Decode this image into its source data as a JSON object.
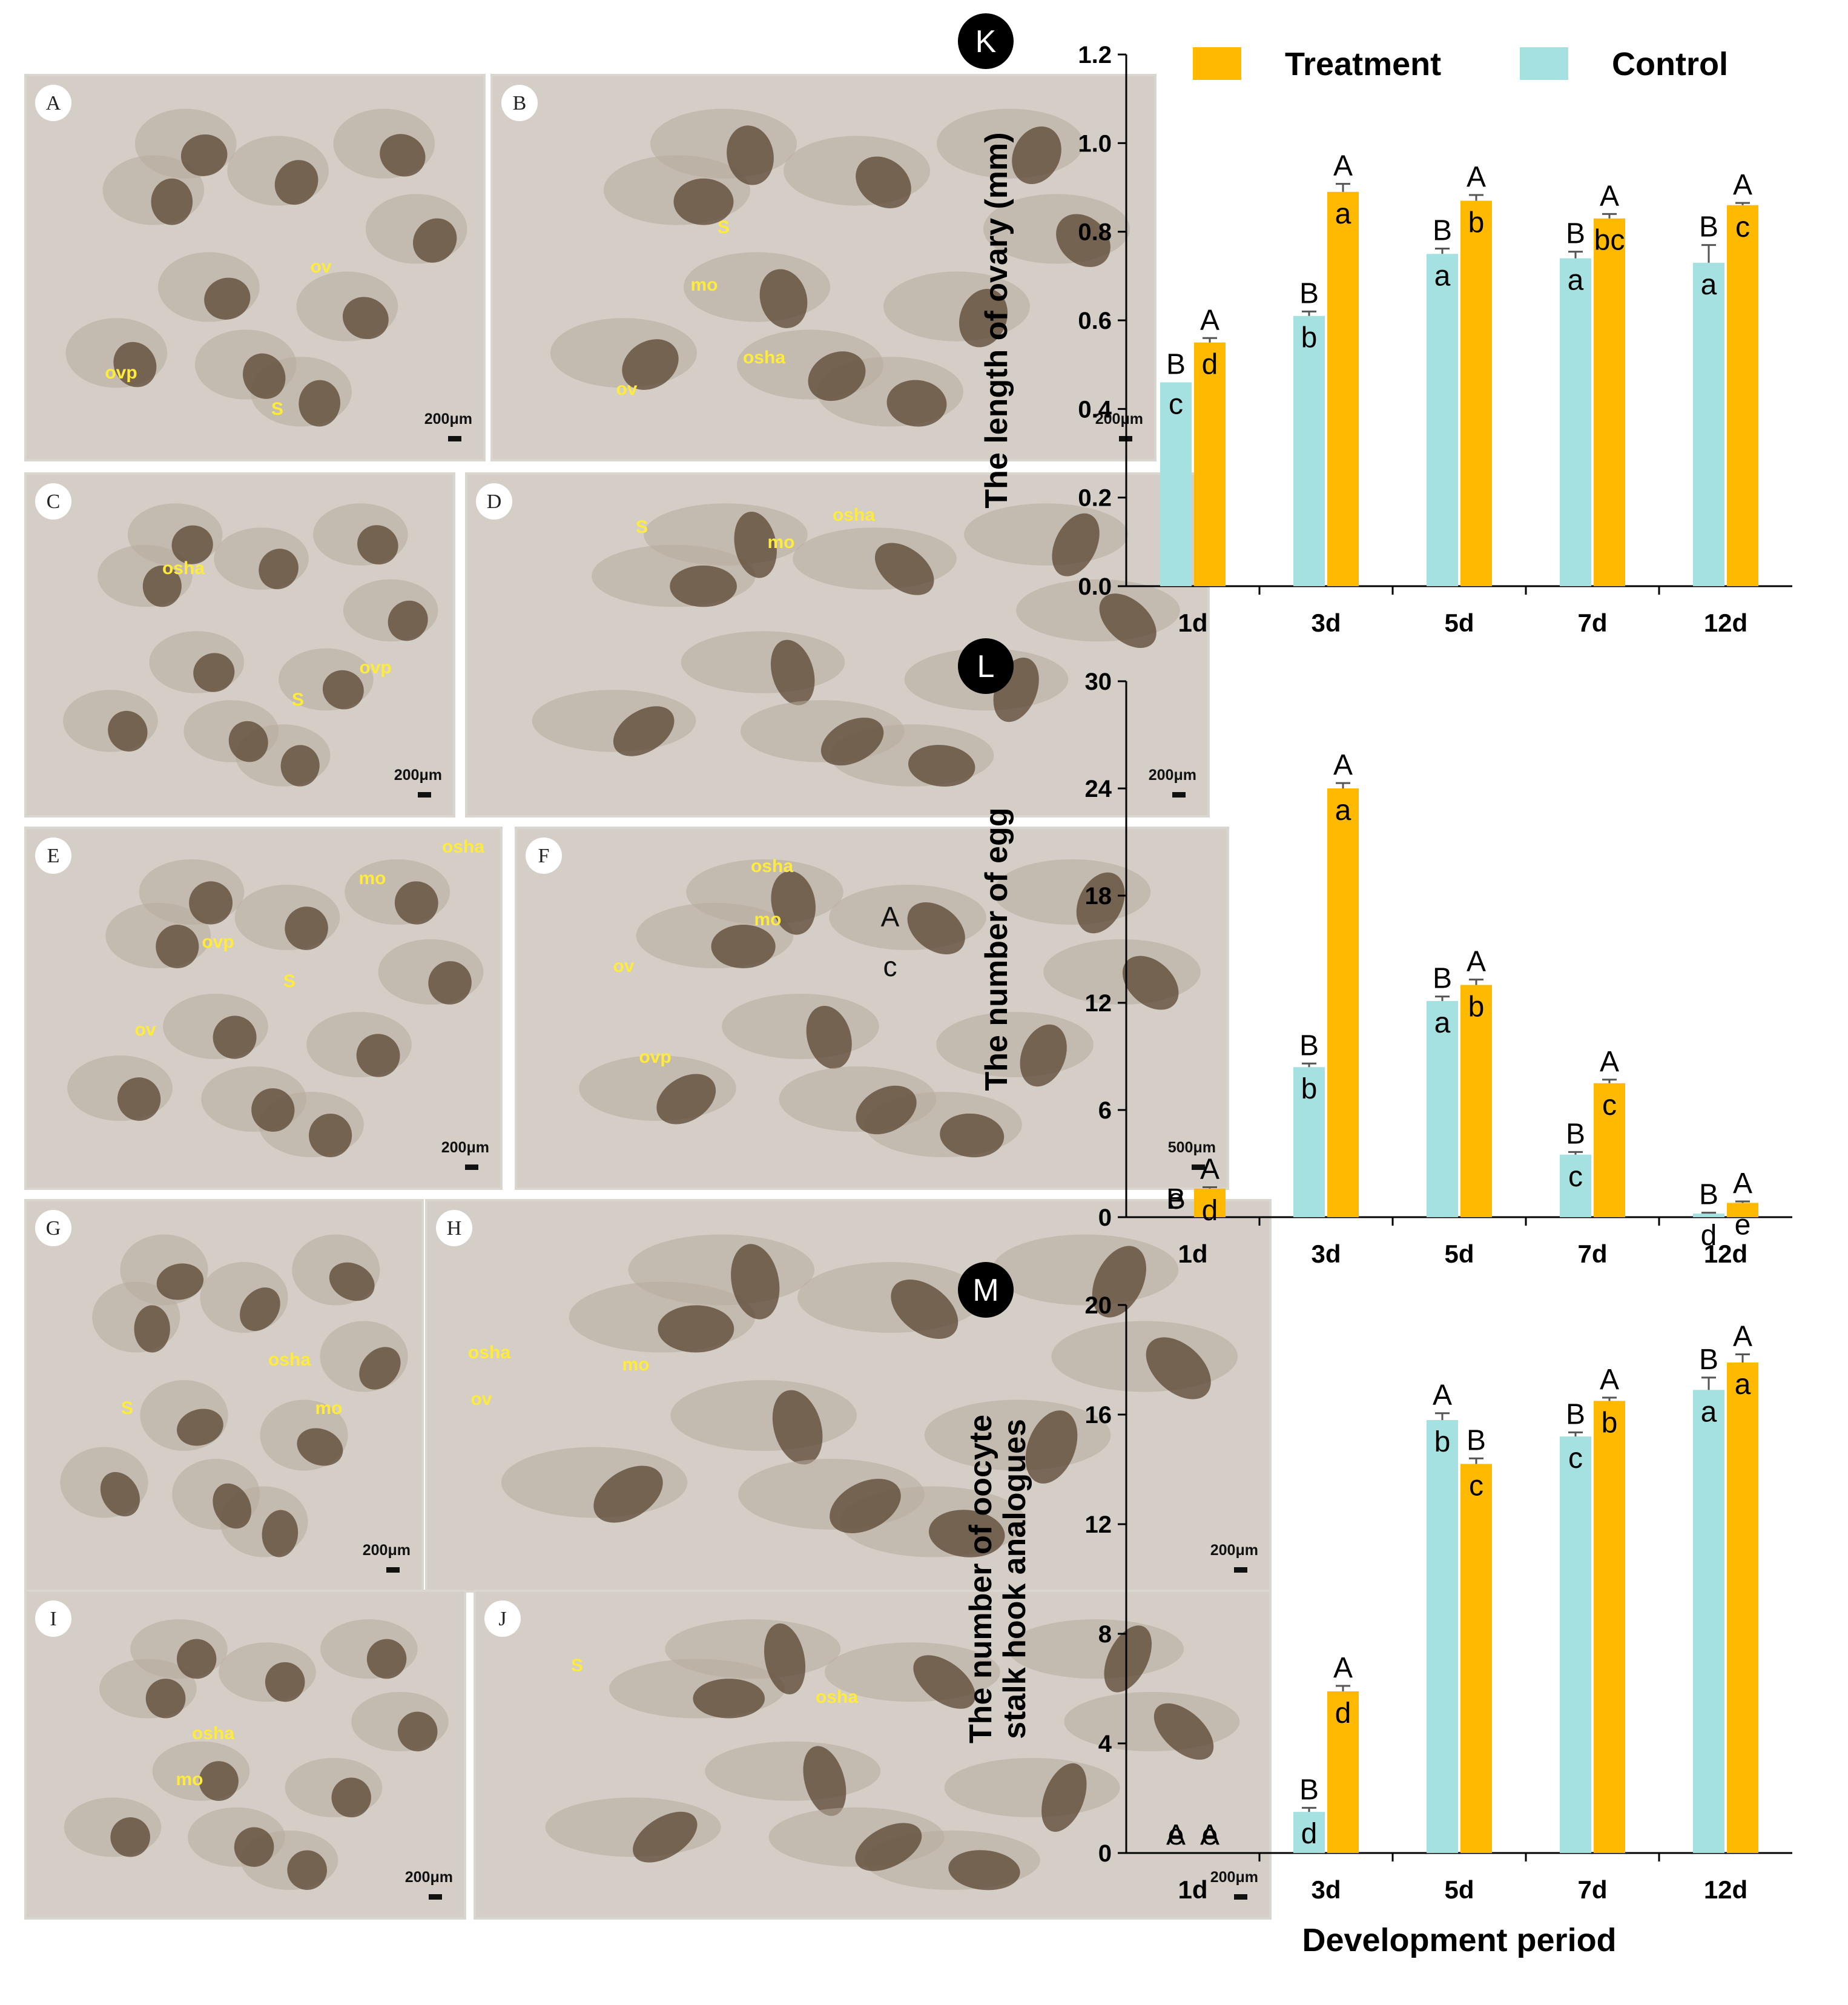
{
  "panels": [
    {
      "letter": "A",
      "labels": [
        {
          "text": "ov"
        },
        {
          "text": "ovp"
        },
        {
          "text": "S"
        }
      ],
      "scale": "200μm"
    },
    {
      "letter": "B",
      "labels": [
        {
          "text": "S"
        },
        {
          "text": "mo"
        },
        {
          "text": "osha"
        },
        {
          "text": "ov"
        }
      ],
      "scale": "200μm"
    },
    {
      "letter": "C",
      "labels": [
        {
          "text": "osha"
        },
        {
          "text": "S"
        },
        {
          "text": "ovp"
        }
      ],
      "scale": "200μm"
    },
    {
      "letter": "D",
      "labels": [
        {
          "text": "S"
        },
        {
          "text": "mo"
        },
        {
          "text": "osha"
        }
      ],
      "scale": "200μm"
    },
    {
      "letter": "E",
      "labels": [
        {
          "text": "mo"
        },
        {
          "text": "osha"
        },
        {
          "text": "ovp"
        },
        {
          "text": "S"
        },
        {
          "text": "ov"
        }
      ],
      "scale": "200μm"
    },
    {
      "letter": "F",
      "labels": [
        {
          "text": "osha"
        },
        {
          "text": "mo"
        },
        {
          "text": "ov"
        },
        {
          "text": "ovp"
        }
      ],
      "scale": "500μm",
      "extra": [
        "A",
        "c"
      ]
    },
    {
      "letter": "G",
      "labels": [
        {
          "text": "osha"
        },
        {
          "text": "mo"
        },
        {
          "text": "S"
        }
      ],
      "scale": "200μm"
    },
    {
      "letter": "H",
      "labels": [
        {
          "text": "osha"
        },
        {
          "text": "mo"
        },
        {
          "text": "ov"
        }
      ],
      "scale": "200μm"
    },
    {
      "letter": "I",
      "labels": [
        {
          "text": "osha"
        },
        {
          "text": "mo"
        }
      ],
      "scale": "200μm"
    },
    {
      "letter": "J",
      "labels": [
        {
          "text": "S"
        },
        {
          "text": "osha"
        }
      ],
      "scale": "200μm"
    }
  ],
  "legend": {
    "treatment": "Treatment",
    "control": "Control"
  },
  "colors": {
    "treatment": "#FFBA00",
    "control": "#A6E1E1"
  },
  "chart_data": [
    {
      "type": "bar",
      "panel": "K",
      "categories": [
        "1d",
        "3d",
        "5d",
        "7d",
        "12d"
      ],
      "ylabel": "The length of ovary (mm)",
      "ylim": [
        0,
        1.2
      ],
      "yticks": [
        "0.0",
        "0.2",
        "0.4",
        "0.6",
        "0.8",
        "1.0",
        "1.2"
      ],
      "series": [
        {
          "name": "Control",
          "values": [
            0.46,
            0.61,
            0.75,
            0.74,
            0.73
          ],
          "errors": [
            0,
            0.01,
            0.012,
            0.015,
            0.04
          ],
          "labels": [
            [
              "B",
              "c"
            ],
            [
              "B",
              "b"
            ],
            [
              "B",
              "a"
            ],
            [
              "B",
              "a"
            ],
            [
              "B",
              "a"
            ]
          ]
        },
        {
          "name": "Treatment",
          "values": [
            0.55,
            0.89,
            0.87,
            0.83,
            0.86
          ],
          "errors": [
            0.01,
            0.018,
            0.013,
            0.01,
            0.005
          ],
          "labels": [
            [
              "A",
              "d"
            ],
            [
              "A",
              "a"
            ],
            [
              "A",
              "b"
            ],
            [
              "A",
              "bc"
            ],
            [
              "A",
              "c"
            ]
          ]
        }
      ]
    },
    {
      "type": "bar",
      "panel": "L",
      "categories": [
        "1d",
        "3d",
        "5d",
        "7d",
        "12d"
      ],
      "ylabel": "The number of egg",
      "ylim": [
        0,
        30
      ],
      "yticks": [
        "0",
        "6",
        "12",
        "18",
        "24",
        "30"
      ],
      "series": [
        {
          "name": "Control",
          "values": [
            0,
            8.4,
            12.1,
            3.5,
            0.2
          ],
          "errors": [
            0,
            0.2,
            0.25,
            0.15,
            0.05
          ],
          "labels": [
            [
              "B",
              "e"
            ],
            [
              "B",
              "b"
            ],
            [
              "B",
              "a"
            ],
            [
              "B",
              "c"
            ],
            [
              "B",
              "d"
            ]
          ]
        },
        {
          "name": "Treatment",
          "values": [
            1.6,
            24,
            13,
            7.5,
            0.8
          ],
          "errors": [
            0.08,
            0.3,
            0.3,
            0.2,
            0.08
          ],
          "labels": [
            [
              "A",
              "d"
            ],
            [
              "A",
              "a"
            ],
            [
              "A",
              "b"
            ],
            [
              "A",
              "c"
            ],
            [
              "A",
              "e"
            ]
          ]
        }
      ]
    },
    {
      "type": "bar",
      "panel": "M",
      "categories": [
        "1d",
        "3d",
        "5d",
        "7d",
        "12d"
      ],
      "xlabel": "Development period",
      "ylabel": "The number of oocyte stalk hook analogues",
      "ylabel_lines": [
        "The number of oocyte",
        "stalk hook analogues"
      ],
      "ylim": [
        0,
        20
      ],
      "yticks": [
        "0",
        "4",
        "8",
        "12",
        "16",
        "20"
      ],
      "series": [
        {
          "name": "Control",
          "values": [
            0,
            1.5,
            15.8,
            15.2,
            16.9
          ],
          "errors": [
            0,
            0.15,
            0.25,
            0.15,
            0.45
          ],
          "labels": [
            [
              "A",
              "e"
            ],
            [
              "B",
              "d"
            ],
            [
              "A",
              "b"
            ],
            [
              "B",
              "c"
            ],
            [
              "B",
              "a"
            ]
          ]
        },
        {
          "name": "Treatment",
          "values": [
            0,
            5.9,
            14.2,
            16.5,
            17.9
          ],
          "errors": [
            0,
            0.2,
            0.2,
            0.12,
            0.3
          ],
          "labels": [
            [
              "A",
              "e"
            ],
            [
              "A",
              "d"
            ],
            [
              "B",
              "c"
            ],
            [
              "A",
              "b"
            ],
            [
              "A",
              "a"
            ]
          ]
        }
      ]
    }
  ]
}
